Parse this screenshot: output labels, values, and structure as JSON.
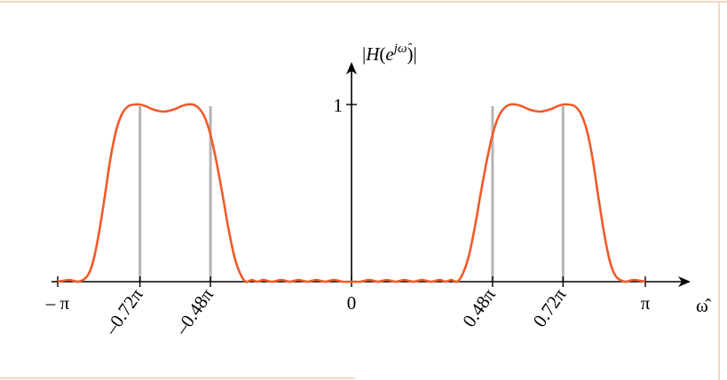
{
  "chart_data": {
    "type": "line",
    "title": "",
    "ylabel_parts": {
      "bar_left": "|",
      "func": "H",
      "open": "(",
      "base": "e",
      "exponent": "jω̂",
      "close": ")",
      "bar_right": "|"
    },
    "xlabel": "ω̂",
    "xlim": [
      -1.0,
      1.0
    ],
    "ylim": [
      0,
      1
    ],
    "x_unit": "π",
    "x_ticks": [
      {
        "value": -1.0,
        "label": "– π",
        "rotated": false
      },
      {
        "value": -0.72,
        "label": "–0.72π",
        "rotated": true
      },
      {
        "value": -0.48,
        "label": "–0.48π",
        "rotated": true
      },
      {
        "value": 0.0,
        "label": "0",
        "rotated": false
      },
      {
        "value": 0.48,
        "label": "0.48π",
        "rotated": true
      },
      {
        "value": 0.72,
        "label": "0.72π",
        "rotated": true
      },
      {
        "value": 1.0,
        "label": "π",
        "rotated": false
      }
    ],
    "y_ticks": [
      {
        "value": 1,
        "label": "1"
      }
    ],
    "guide_lines_x": [
      -0.72,
      -0.48,
      0.48,
      0.72
    ],
    "series": [
      {
        "color": "#f05a28",
        "x": [
          -1.0,
          -0.96,
          -0.93,
          -0.9,
          -0.88,
          -0.86,
          -0.84,
          -0.82,
          -0.8,
          -0.78,
          -0.76,
          -0.74,
          -0.72,
          -0.7,
          -0.68,
          -0.66,
          -0.64,
          -0.62,
          -0.6,
          -0.58,
          -0.56,
          -0.54,
          -0.52,
          -0.5,
          -0.48,
          -0.46,
          -0.44,
          -0.42,
          -0.4,
          -0.38,
          -0.36,
          -0.34,
          -0.32,
          -0.3,
          -0.27,
          -0.24,
          -0.21,
          -0.18,
          -0.15,
          -0.12,
          -0.09,
          -0.06,
          -0.03,
          0.0,
          0.03,
          0.06,
          0.09,
          0.12,
          0.15,
          0.18,
          0.21,
          0.24,
          0.27,
          0.3,
          0.32,
          0.34,
          0.36,
          0.38,
          0.4,
          0.42,
          0.44,
          0.46,
          0.48,
          0.5,
          0.52,
          0.54,
          0.56,
          0.58,
          0.6,
          0.62,
          0.64,
          0.66,
          0.68,
          0.7,
          0.72,
          0.74,
          0.76,
          0.78,
          0.8,
          0.82,
          0.84,
          0.86,
          0.88,
          0.9,
          0.93,
          0.96,
          1.0
        ],
        "y": [
          0.0,
          0.01,
          0.0,
          0.03,
          0.11,
          0.27,
          0.48,
          0.7,
          0.86,
          0.95,
          0.99,
          1.0,
          1.0,
          0.99,
          0.975,
          0.965,
          0.96,
          0.965,
          0.975,
          0.99,
          1.0,
          1.0,
          0.98,
          0.93,
          0.83,
          0.68,
          0.5,
          0.31,
          0.15,
          0.05,
          0.0,
          0.01,
          0.0,
          0.01,
          0.0,
          0.01,
          0.0,
          0.01,
          0.0,
          0.01,
          0.0,
          0.01,
          0.0,
          0.0,
          0.0,
          0.01,
          0.0,
          0.01,
          0.0,
          0.01,
          0.0,
          0.01,
          0.0,
          0.01,
          0.0,
          0.01,
          0.0,
          0.05,
          0.15,
          0.31,
          0.5,
          0.68,
          0.83,
          0.93,
          0.98,
          1.0,
          1.0,
          0.99,
          0.975,
          0.965,
          0.96,
          0.965,
          0.975,
          0.99,
          1.0,
          1.0,
          0.99,
          0.95,
          0.86,
          0.7,
          0.48,
          0.27,
          0.11,
          0.03,
          0.0,
          0.01,
          0.0
        ]
      }
    ]
  }
}
